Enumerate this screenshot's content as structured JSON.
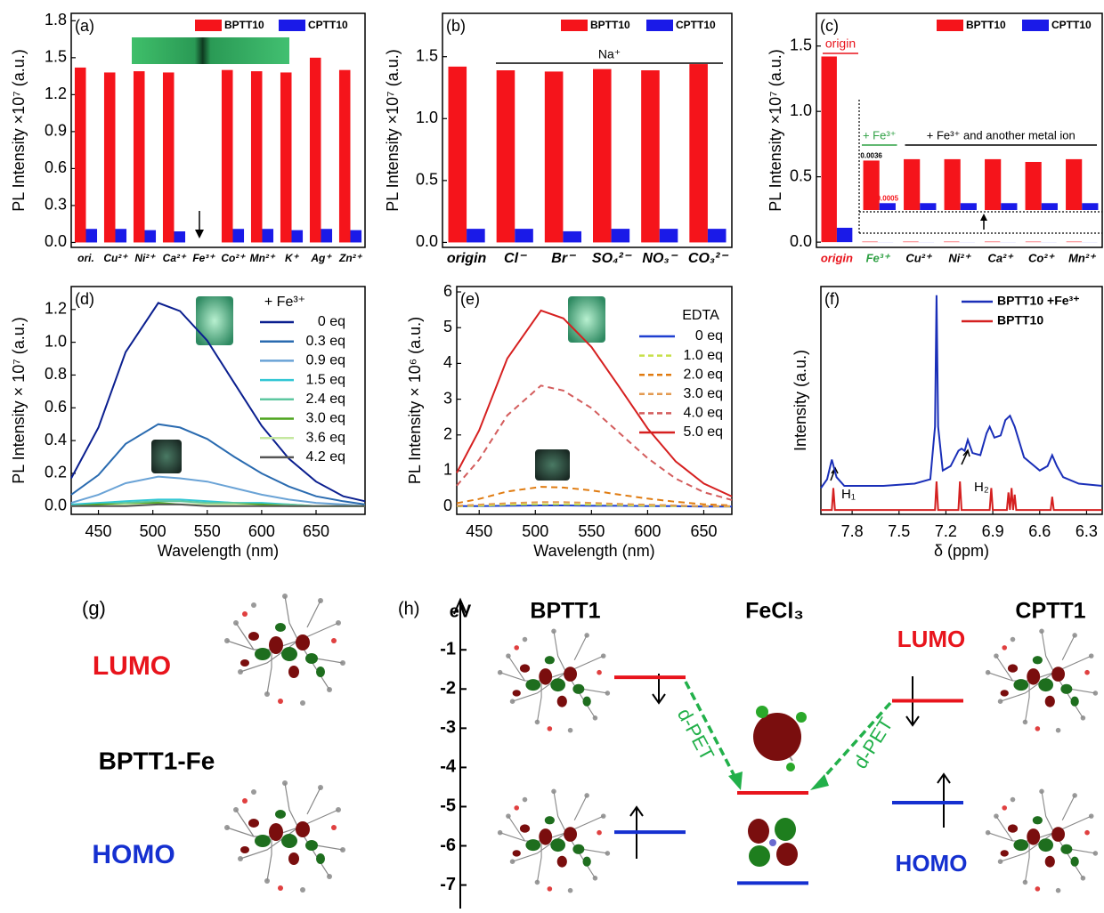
{
  "chart_data": [
    {
      "type": "bar",
      "label": "(a)",
      "ylabel": "PL Intensity ×10⁷ (a.u.)",
      "categories": [
        "ori.",
        "Cu²⁺",
        "Ni²⁺",
        "Ca²⁺",
        "Fe³⁺",
        "Co²⁺",
        "Mn²⁺",
        "K⁺",
        "Ag⁺",
        "Zn²⁺"
      ],
      "series": [
        {
          "name": "BPTT10",
          "color": "#f5141b",
          "values": [
            1.42,
            1.38,
            1.39,
            1.38,
            0,
            1.4,
            1.39,
            1.38,
            1.5,
            1.4
          ]
        },
        {
          "name": "CPTT10",
          "color": "#1a1ae8",
          "values": [
            0.11,
            0.11,
            0.1,
            0.09,
            0,
            0.11,
            0.11,
            0.1,
            0.11,
            0.1
          ]
        }
      ],
      "ylim": [
        -0.04,
        1.86
      ],
      "yticks": [
        {
          "value": 0,
          "label": "0.0"
        },
        0.3,
        0.6,
        0.9,
        1.2,
        1.5,
        1.8
      ]
    },
    {
      "type": "bar",
      "label": "(b)",
      "ylabel": "PL Intensity ×10⁷ (a.u.)",
      "annotation": "Na⁺",
      "categories": [
        "origin",
        "Cl⁻",
        "Br⁻",
        "SO₄²⁻",
        "NO₃⁻",
        "CO₃²⁻"
      ],
      "series": [
        {
          "name": "BPTT10",
          "color": "#f5141b",
          "values": [
            1.42,
            1.39,
            1.38,
            1.4,
            1.39,
            1.44
          ]
        },
        {
          "name": "CPTT10",
          "color": "#1a1ae8",
          "values": [
            0.11,
            0.11,
            0.09,
            0.11,
            0.11,
            0.11
          ]
        }
      ],
      "ylim": [
        -0.04,
        1.85
      ],
      "yticks": [
        {
          "value": 0,
          "label": "0.0"
        },
        0.5,
        {
          "value": 1,
          "label": "1.0"
        },
        1.5
      ]
    },
    {
      "type": "bar",
      "label": "(c)",
      "ylabel": "PL Intensity ×10⁷ (a.u.)",
      "annotation": "origin",
      "categories": [
        "origin",
        "Fe³⁺",
        "Cu²⁺",
        "Ni²⁺",
        "Ca²⁺",
        "Co²⁺",
        "Mn²⁺"
      ],
      "category_colors": [
        "#e8141c",
        "#2ea043",
        "#000000",
        "#000000",
        "#000000",
        "#000000",
        "#000000"
      ],
      "series": [
        {
          "name": "BPTT10",
          "color": "#f5141b",
          "values": [
            1.42,
            0.0036,
            0.0037,
            0.0037,
            0.0037,
            0.0035,
            0.0037
          ],
          "value_labels": [
            null,
            "0.0036",
            null,
            null,
            null,
            null,
            null
          ]
        },
        {
          "name": "CPTT10",
          "color": "#1a1ae8",
          "values": [
            0.11,
            0.0005,
            0.0005,
            0.0005,
            0.0005,
            0.0005,
            0.0005
          ],
          "value_labels": [
            null,
            "0.0005",
            null,
            null,
            null,
            null,
            null
          ]
        }
      ],
      "ylim": [
        -0.04,
        1.75
      ],
      "yticks": [
        {
          "value": 0,
          "label": "0.0"
        },
        0.5,
        {
          "value": 1,
          "label": "1.0"
        },
        1.5
      ],
      "inset": {
        "ylim": [
          0,
          0.0046
        ],
        "titles": [
          "+ Fe³⁺",
          "+ Fe³⁺ and another metal ion"
        ]
      }
    },
    {
      "type": "line",
      "label": "(d)",
      "ylabel": "PL Intensity × 10⁷ (a.u.)",
      "xlabel": "Wavelength (nm)",
      "legend_title": "+ Fe³⁺",
      "x": [
        425,
        450,
        475,
        505,
        525,
        550,
        575,
        600,
        625,
        650,
        675,
        695
      ],
      "series": [
        {
          "name": "0 eq",
          "color": "#0b1f8f",
          "values": [
            0.17,
            0.48,
            0.94,
            1.24,
            1.19,
            1.01,
            0.75,
            0.49,
            0.29,
            0.15,
            0.06,
            0.03
          ]
        },
        {
          "name": "0.3 eq",
          "color": "#2a6bb0",
          "values": [
            0.07,
            0.19,
            0.38,
            0.5,
            0.48,
            0.41,
            0.3,
            0.2,
            0.12,
            0.06,
            0.03,
            0.01
          ]
        },
        {
          "name": "0.9 eq",
          "color": "#6aa3d6",
          "values": [
            0.02,
            0.07,
            0.14,
            0.18,
            0.17,
            0.15,
            0.11,
            0.07,
            0.04,
            0.02,
            0.01,
            0
          ]
        },
        {
          "name": "1.5 eq",
          "color": "#31c6d4",
          "values": [
            0.01,
            0.02,
            0.03,
            0.04,
            0.04,
            0.03,
            0.02,
            0.02,
            0.01,
            0,
            0,
            0
          ]
        },
        {
          "name": "2.4 eq",
          "color": "#5ec7a0",
          "values": [
            0,
            0.01,
            0.02,
            0.03,
            0.03,
            0.02,
            0.02,
            0.01,
            0.01,
            0,
            0,
            0
          ]
        },
        {
          "name": "3.0 eq",
          "color": "#4ca31c",
          "values": [
            0,
            0.01,
            0.01,
            0.02,
            0.01,
            0.01,
            0.01,
            0.01,
            0,
            0,
            0,
            0
          ]
        },
        {
          "name": "3.6 eq",
          "color": "#c5e8a0",
          "values": [
            0,
            0,
            0.01,
            0.01,
            0.01,
            0.01,
            0.01,
            0,
            0,
            0,
            0,
            0
          ]
        },
        {
          "name": "4.2 eq",
          "color": "#555555",
          "values": [
            0,
            0,
            0,
            0.01,
            0.01,
            0,
            0,
            0,
            0,
            0,
            0,
            0
          ]
        }
      ],
      "xlim": [
        425,
        695
      ],
      "xticks": [
        450,
        500,
        550,
        600,
        650
      ],
      "ylim": [
        -0.05,
        1.34
      ],
      "yticks": [
        {
          "value": 0,
          "label": "0.0"
        },
        0.2,
        0.4,
        0.6,
        0.8,
        {
          "value": 1,
          "label": "1.0"
        },
        1.2
      ]
    },
    {
      "type": "line",
      "label": "(e)",
      "ylabel": "PL Intensity × 10⁶ (a.u.)",
      "xlabel": "Wavelength (nm)",
      "legend_title": "EDTA",
      "x": [
        430,
        450,
        475,
        505,
        525,
        550,
        575,
        600,
        625,
        650,
        675
      ],
      "series": [
        {
          "name": "0 eq",
          "color": "#1f3fd0",
          "dash": false,
          "values": [
            0.01,
            0.01,
            0.02,
            0.03,
            0.03,
            0.02,
            0.02,
            0.01,
            0.01,
            0,
            0
          ]
        },
        {
          "name": "1.0 eq",
          "color": "#c8e04a",
          "dash": true,
          "values": [
            0.01,
            0.02,
            0.05,
            0.06,
            0.06,
            0.05,
            0.04,
            0.02,
            0.01,
            0.01,
            0
          ]
        },
        {
          "name": "2.0 eq",
          "color": "#e07b10",
          "dash": true,
          "values": [
            0.09,
            0.21,
            0.42,
            0.55,
            0.53,
            0.45,
            0.33,
            0.22,
            0.13,
            0.06,
            0.03
          ]
        },
        {
          "name": "3.0 eq",
          "color": "#e39a50",
          "dash": true,
          "values": [
            0.02,
            0.05,
            0.09,
            0.12,
            0.12,
            0.1,
            0.07,
            0.05,
            0.03,
            0.01,
            0.01
          ]
        },
        {
          "name": "4.0 eq",
          "color": "#d35c5c",
          "dash": true,
          "values": [
            0.58,
            1.31,
            2.55,
            3.38,
            3.24,
            2.75,
            2.05,
            1.35,
            0.78,
            0.4,
            0.18
          ]
        },
        {
          "name": "5.0 eq",
          "color": "#d62020",
          "dash": false,
          "values": [
            0.94,
            2.13,
            4.14,
            5.48,
            5.26,
            4.46,
            3.33,
            2.18,
            1.26,
            0.64,
            0.28
          ]
        }
      ],
      "xlim": [
        430,
        675
      ],
      "xticks": [
        450,
        500,
        550,
        600,
        650
      ],
      "ylim": [
        -0.22,
        6.15
      ],
      "yticks": [
        0,
        1,
        2,
        3,
        4,
        5,
        6
      ]
    },
    {
      "type": "line",
      "label": "(f)",
      "ylabel": "Intensity (a.u.)",
      "xlabel": "δ (ppm)",
      "annotations": [
        "H₁",
        "H₂"
      ],
      "series": [
        {
          "name": "BPTT10 +Fe³⁺",
          "color": "#1a2fb8",
          "x": [
            8.0,
            7.96,
            7.93,
            7.9,
            7.85,
            7.6,
            7.4,
            7.3,
            7.27,
            7.26,
            7.25,
            7.22,
            7.17,
            7.12,
            7.1,
            7.08,
            7.06,
            7.03,
            6.98,
            6.94,
            6.92,
            6.89,
            6.85,
            6.82,
            6.79,
            6.76,
            6.7,
            6.6,
            6.55,
            6.52,
            6.49,
            6.45,
            6.35,
            6.2
          ],
          "values": [
            0.12,
            0.16,
            0.25,
            0.17,
            0.13,
            0.13,
            0.14,
            0.16,
            0.4,
            1.0,
            0.4,
            0.2,
            0.22,
            0.29,
            0.3,
            0.29,
            0.34,
            0.28,
            0.27,
            0.37,
            0.4,
            0.35,
            0.36,
            0.43,
            0.45,
            0.4,
            0.26,
            0.2,
            0.22,
            0.27,
            0.22,
            0.17,
            0.14,
            0.13
          ]
        },
        {
          "name": "BPTT10",
          "color": "#d42020",
          "x": [
            8.0,
            7.93,
            7.92,
            7.91,
            7.27,
            7.26,
            7.25,
            7.12,
            7.11,
            7.1,
            6.92,
            6.91,
            6.9,
            6.81,
            6.8,
            6.79,
            6.78,
            6.77,
            6.76,
            6.75,
            6.53,
            6.52,
            6.51,
            6.2
          ],
          "values": [
            0.02,
            0.02,
            0.12,
            0.02,
            0.02,
            0.15,
            0.02,
            0.02,
            0.15,
            0.02,
            0.02,
            0.12,
            0.02,
            0.02,
            0.1,
            0.02,
            0.12,
            0.02,
            0.09,
            0.02,
            0.02,
            0.08,
            0.02,
            0.02
          ]
        }
      ],
      "xlim": [
        8.0,
        6.2
      ],
      "xticks": [
        7.8,
        7.5,
        7.2,
        6.9,
        6.6,
        6.3
      ],
      "ylim": [
        0,
        1.04
      ]
    },
    {
      "type": "energy",
      "label": "(h)",
      "ylabel": "eV",
      "ylim": [
        -7.6,
        -0.2
      ],
      "yticks": [
        -1,
        -2,
        -3,
        -4,
        -5,
        -6,
        -7
      ],
      "groups": [
        {
          "name": "BPTT1",
          "levels": [
            -1.7,
            -5.65
          ]
        },
        {
          "name": "FeCl₃",
          "levels": [
            -4.65,
            -6.95
          ]
        },
        {
          "name": "CPTT1",
          "levels": [
            -2.3,
            -4.9
          ]
        }
      ],
      "level_colors": [
        "#e8141c",
        "#1530d0"
      ],
      "level_names": [
        "LUMO",
        "HOMO"
      ],
      "transfer": "d-PET",
      "transfer_color": "#22b04a"
    }
  ],
  "panel_g": {
    "label": "(g)",
    "lumo": "LUMO",
    "name": "BPTT1-Fe",
    "homo": "HOMO"
  }
}
